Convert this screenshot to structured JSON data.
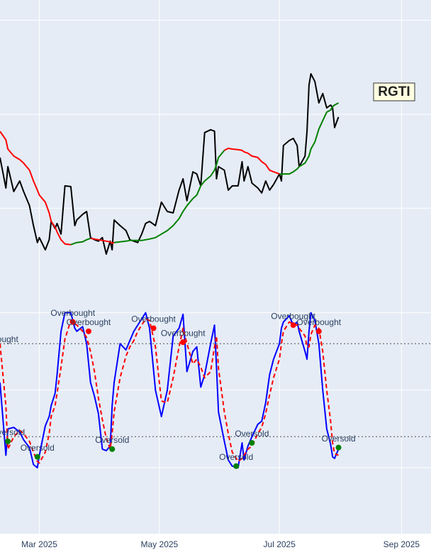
{
  "chart_data": [
    {
      "type": "line",
      "label": "RGTI",
      "xlim": [
        "2025-02-09",
        "2025-09-16"
      ],
      "ylim": [
        4.63,
        16.86
      ],
      "yticks": [
        8,
        12,
        16
      ],
      "grid": true,
      "x": [
        "2025-02-09",
        "2025-02-12",
        "2025-02-13",
        "2025-02-16",
        "2025-02-19",
        "2025-02-21",
        "2025-02-24",
        "2025-02-26",
        "2025-02-28",
        "2025-03-01",
        "2025-03-04",
        "2025-03-06",
        "2025-03-07",
        "2025-03-09",
        "2025-03-10",
        "2025-03-12",
        "2025-03-14",
        "2025-03-17",
        "2025-03-19",
        "2025-03-20",
        "2025-03-23",
        "2025-03-25",
        "2025-03-27",
        "2025-03-29",
        "2025-03-31",
        "2025-04-02",
        "2025-04-04",
        "2025-04-06",
        "2025-04-07",
        "2025-04-08",
        "2025-04-11",
        "2025-04-14",
        "2025-04-16",
        "2025-04-18",
        "2025-04-20",
        "2025-04-22",
        "2025-04-24",
        "2025-04-26",
        "2025-04-29",
        "2025-05-02",
        "2025-05-05",
        "2025-05-08",
        "2025-05-11",
        "2025-05-13",
        "2025-05-15",
        "2025-05-18",
        "2025-05-20",
        "2025-05-22",
        "2025-05-24",
        "2025-05-27",
        "2025-05-29",
        "2025-05-30",
        "2025-05-31",
        "2025-06-03",
        "2025-06-05",
        "2025-06-07",
        "2025-06-10",
        "2025-06-12",
        "2025-06-13",
        "2025-06-15",
        "2025-06-17",
        "2025-06-20",
        "2025-06-22",
        "2025-06-24",
        "2025-06-26",
        "2025-06-28",
        "2025-07-01",
        "2025-07-02",
        "2025-07-03",
        "2025-07-06",
        "2025-07-08",
        "2025-07-10",
        "2025-07-11",
        "2025-07-14",
        "2025-07-15",
        "2025-07-16",
        "2025-07-17",
        "2025-07-19",
        "2025-07-21",
        "2025-07-23",
        "2025-07-25",
        "2025-07-27",
        "2025-07-28",
        "2025-07-29",
        "2025-07-31"
      ],
      "series": [
        {
          "color": "black",
          "values": [
            10.16,
            8.86,
            9.77,
            8.71,
            9.16,
            8.71,
            8.11,
            7.26,
            6.54,
            6.75,
            6.23,
            6.66,
            7.44,
            7.14,
            7.35,
            6.9,
            8.95,
            8.92,
            7.26,
            7.5,
            7.74,
            7.86,
            6.75,
            6.66,
            6.6,
            6.75,
            6.05,
            6.6,
            6.23,
            7.5,
            7.26,
            7.05,
            6.66,
            6.6,
            6.54,
            6.9,
            7.35,
            7.44,
            7.26,
            8.26,
            7.86,
            7.8,
            8.77,
            9.25,
            8.32,
            9.55,
            9.46,
            8.95,
            11.22,
            11.34,
            11.28,
            9.25,
            9.77,
            9.62,
            8.77,
            8.95,
            8.95,
            9.98,
            9.16,
            9.77,
            9.07,
            8.86,
            8.65,
            9.16,
            8.77,
            9.01,
            9.46,
            9.16,
            10.67,
            10.88,
            10.97,
            10.67,
            9.77,
            10.22,
            11.28,
            13.24,
            13.72,
            13.39,
            12.48,
            12.88,
            12.27,
            12.39,
            12.27,
            11.43,
            11.88
          ]
        },
        {
          "values": [
            11.27,
            10.91,
            10.52,
            10.22,
            10.07,
            9.92,
            9.62,
            9.16,
            8.77,
            8.56,
            8.26,
            7.8,
            7.44,
            7.2,
            6.99,
            6.66,
            6.48,
            6.45,
            6.51,
            6.54,
            6.57,
            6.66,
            6.72,
            6.69,
            6.66,
            6.63,
            6.6,
            6.57,
            6.51,
            6.54,
            6.57,
            6.6,
            6.63,
            6.63,
            6.63,
            6.63,
            6.66,
            6.69,
            6.75,
            6.9,
            7.05,
            7.26,
            7.56,
            7.86,
            8.11,
            8.41,
            8.56,
            8.95,
            9.16,
            9.37,
            9.62,
            9.86,
            10.16,
            10.46,
            10.55,
            10.52,
            10.49,
            10.46,
            10.4,
            10.34,
            10.22,
            10.16,
            9.98,
            9.86,
            9.62,
            9.55,
            9.46,
            9.43,
            9.46,
            9.46,
            9.55,
            9.67,
            9.77,
            9.92,
            10.07,
            10.22,
            10.52,
            10.82,
            11.37,
            11.73,
            12.09,
            12.18,
            12.33,
            12.39,
            12.48
          ],
          "colors": [
            "red",
            "red",
            "red",
            "red",
            "red",
            "red",
            "red",
            "red",
            "red",
            "red",
            "red",
            "red",
            "red",
            "red",
            "red",
            "red",
            "red",
            "red",
            "green",
            "green",
            "green",
            "green",
            "green",
            "red",
            "red",
            "red",
            "red",
            "red",
            "red",
            "red",
            "green",
            "green",
            "green",
            "green",
            "green",
            "green",
            "green",
            "green",
            "green",
            "green",
            "green",
            "green",
            "green",
            "green",
            "green",
            "green",
            "green",
            "green",
            "green",
            "green",
            "green",
            "green",
            "green",
            "green",
            "red",
            "red",
            "red",
            "red",
            "red",
            "red",
            "red",
            "red",
            "red",
            "red",
            "red",
            "red",
            "red",
            "green",
            "green",
            "green",
            "green",
            "green",
            "green",
            "green",
            "green",
            "green",
            "green",
            "green",
            "green",
            "green",
            "green",
            "green",
            "green",
            "green",
            "green"
          ]
        }
      ]
    },
    {
      "type": "line",
      "xlim": [
        "2025-02-09",
        "2025-09-16"
      ],
      "ylim": [
        -42.6,
        106.7
      ],
      "yticks": [
        0,
        50,
        100
      ],
      "grid": true,
      "xticks": [
        {
          "value": "2025-03-01",
          "label": "Mar 2025"
        },
        {
          "value": "2025-05-01",
          "label": "May 2025"
        },
        {
          "value": "2025-07-01",
          "label": "Jul 2025"
        },
        {
          "value": "2025-09-01",
          "label": "Sep 2025"
        }
      ],
      "hlines": [
        80,
        20
      ],
      "series": [
        {
          "color": "blue",
          "values": [
            55,
            8,
            25,
            26,
            23,
            18,
            13,
            2,
            0,
            8,
            27,
            33,
            40,
            48,
            60,
            88,
            100,
            100,
            90,
            88,
            91,
            80,
            55,
            46,
            35,
            12,
            11,
            14,
            40,
            55,
            80,
            76,
            82,
            88,
            92,
            96,
            100,
            90,
            50,
            33,
            50,
            85,
            90,
            99,
            62,
            75,
            78,
            52,
            60,
            80,
            92,
            65,
            36,
            17,
            5,
            1,
            0,
            16,
            5,
            14,
            20,
            28,
            30,
            42,
            60,
            70,
            80,
            90,
            94,
            98,
            92,
            94,
            88,
            75,
            70,
            88,
            100,
            95,
            80,
            50,
            25,
            15,
            7,
            6,
            12
          ]
        },
        {
          "color": "red",
          "dash": true,
          "values": [
            80,
            40,
            12,
            20,
            24,
            22,
            17,
            10,
            4,
            3,
            10,
            22,
            33,
            40,
            48,
            65,
            83,
            95,
            93,
            92,
            88,
            84,
            75,
            62,
            45,
            31,
            19,
            12,
            22,
            36,
            58,
            72,
            78,
            82,
            88,
            92,
            96,
            95,
            78,
            43,
            42,
            58,
            78,
            90,
            80,
            67,
            70,
            65,
            58,
            62,
            78,
            85,
            64,
            36,
            22,
            10,
            4,
            6,
            8,
            12,
            14,
            22,
            26,
            35,
            47,
            58,
            70,
            80,
            88,
            94,
            93,
            92,
            90,
            85,
            78,
            78,
            86,
            92,
            90,
            75,
            50,
            30,
            16,
            9,
            8
          ]
        }
      ],
      "annotations": [
        {
          "text": "Overbought",
          "x": "2025-02-07",
          "y": 77,
          "color": "red"
        },
        {
          "text": "Oversold",
          "x": "2025-02-13",
          "y": 17,
          "color": "green"
        },
        {
          "text": "Oversold",
          "x": "2025-02-28",
          "y": 7,
          "color": "green"
        },
        {
          "text": "Overbought",
          "x": "2025-03-18",
          "y": 94,
          "color": "red"
        },
        {
          "text": "Overbought",
          "x": "2025-03-26",
          "y": 88,
          "color": "red"
        },
        {
          "text": "Oversold",
          "x": "2025-04-07",
          "y": 12,
          "color": "green"
        },
        {
          "text": "Overbought",
          "x": "2025-04-28",
          "y": 90,
          "color": "red"
        },
        {
          "text": "Overbought",
          "x": "2025-05-13",
          "y": 81,
          "color": "red"
        },
        {
          "text": "Oversold",
          "x": "2025-06-09",
          "y": 1,
          "color": "green"
        },
        {
          "text": "Oversold",
          "x": "2025-06-17",
          "y": 16,
          "color": "green"
        },
        {
          "text": "Overbought",
          "x": "2025-07-08",
          "y": 92,
          "color": "red"
        },
        {
          "text": "Overbought",
          "x": "2025-07-21",
          "y": 88,
          "color": "red"
        },
        {
          "text": "Oversold",
          "x": "2025-07-31",
          "y": 13,
          "color": "green"
        }
      ]
    }
  ]
}
